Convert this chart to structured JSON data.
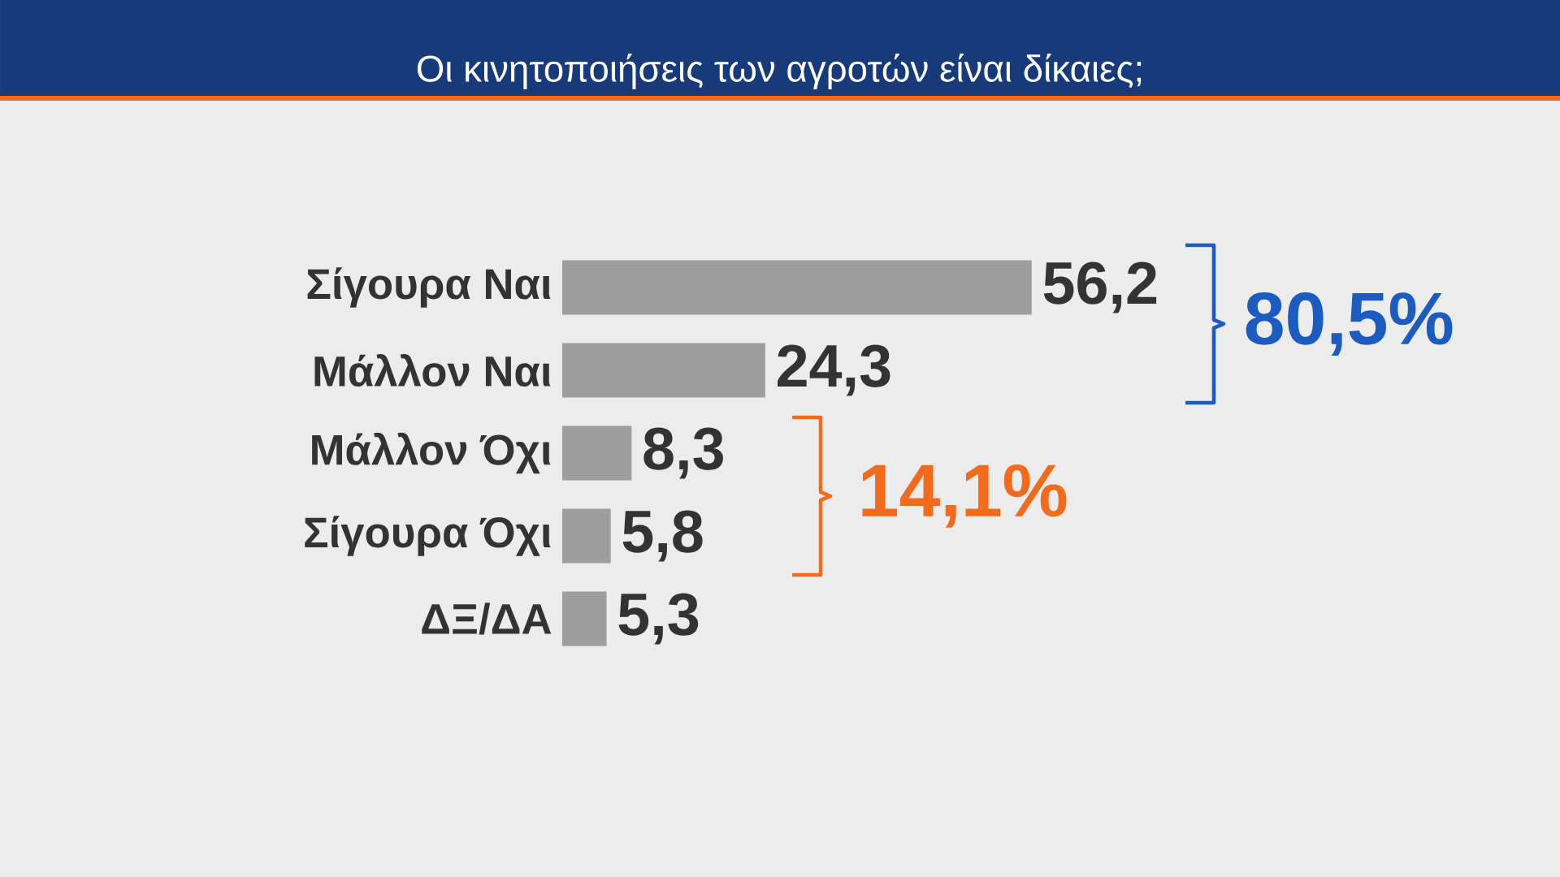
{
  "chart_data": {
    "type": "bar",
    "orientation": "horizontal",
    "title": "Οι κινητοποιήσεις των αγροτών είναι δίκαιες;",
    "categories": [
      "Σίγουρα Ναι",
      "Μάλλον Ναι",
      "Μάλλον Όχι",
      "Σίγουρα Όχι",
      "ΔΞ/ΔΑ"
    ],
    "values": [
      56.2,
      24.3,
      8.3,
      5.8,
      5.3
    ],
    "value_labels": [
      "56,2",
      "24,3",
      "8,3",
      "5,8",
      "5,3"
    ],
    "color": "#9e9e9e",
    "annotations": [
      "80,5%",
      "14,1%"
    ]
  }
}
